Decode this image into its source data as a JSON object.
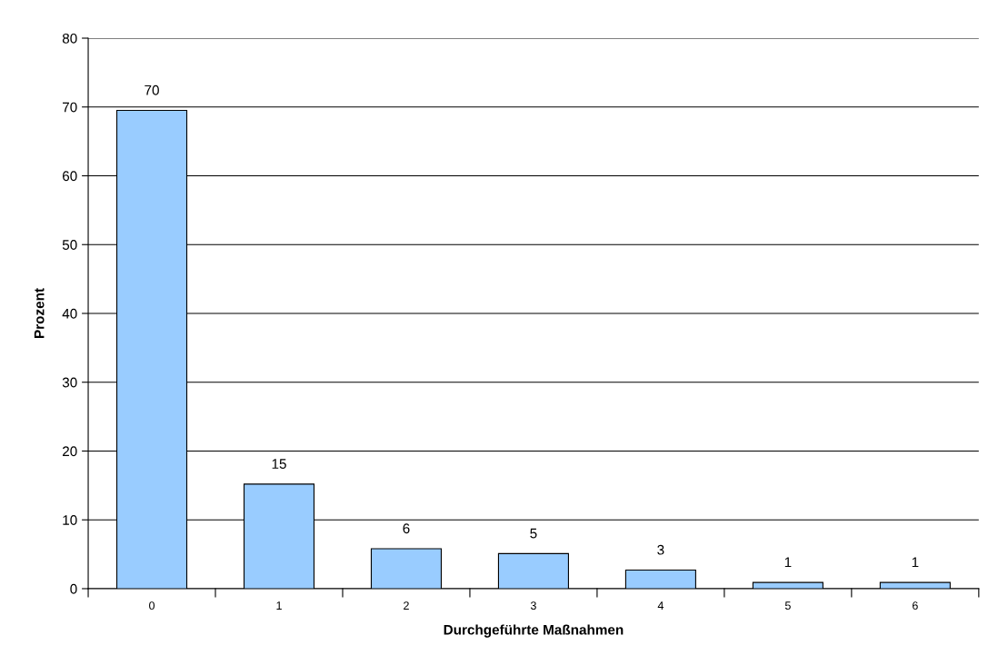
{
  "chart_data": {
    "type": "bar",
    "xlabel": "Durchgeführte Maßnahmen",
    "ylabel": "Prozent",
    "categories": [
      "0",
      "1",
      "2",
      "3",
      "4",
      "5",
      "6"
    ],
    "values": [
      69.5,
      15.2,
      5.8,
      5.1,
      2.7,
      0.9,
      0.9
    ],
    "value_labels": [
      "70",
      "15",
      "6",
      "5",
      "3",
      "1",
      "1"
    ],
    "color": "#99ccff",
    "ylim": [
      0,
      80
    ],
    "yticks": [
      0,
      10,
      20,
      30,
      40,
      50,
      60,
      70,
      80
    ],
    "grid": "y",
    "legend": false
  }
}
